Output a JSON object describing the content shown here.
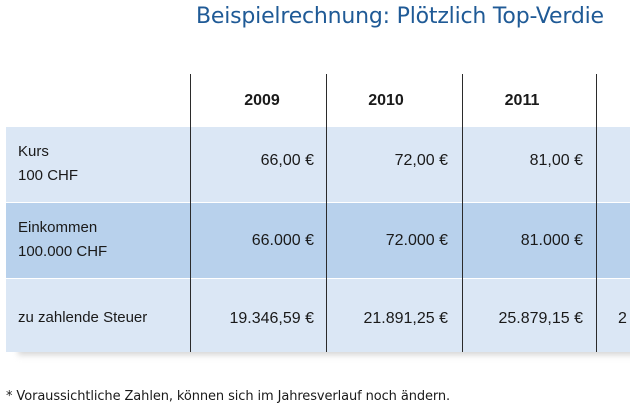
{
  "title": "Beispielrechnung: Plötzlich Top-Verdie",
  "table": {
    "years": [
      "2009",
      "2010",
      "2011"
    ],
    "rows": [
      {
        "label_line1": "Kurs",
        "label_line2": "100 CHF",
        "values": [
          "66,00 €",
          "72,00 €",
          "81,00 €"
        ],
        "extra": ""
      },
      {
        "label_line1": "Einkommen",
        "label_line2": "100.000 CHF",
        "values": [
          "66.000 €",
          "72.000 €",
          "81.000 €"
        ],
        "extra": ""
      },
      {
        "label_line1": "zu zahlende Steuer",
        "label_line2": "",
        "values": [
          "19.346,59 €",
          "21.891,25 €",
          "25.879,15 €"
        ],
        "extra": "2"
      }
    ]
  },
  "footnote": "* Voraussichtliche Zahlen, können sich im Jahresverlauf noch ändern.",
  "colors": {
    "title": "#1f5a96",
    "row_light": "#dbe7f5",
    "row_dark": "#b8d1ec",
    "divider": "#2b2b2b"
  }
}
